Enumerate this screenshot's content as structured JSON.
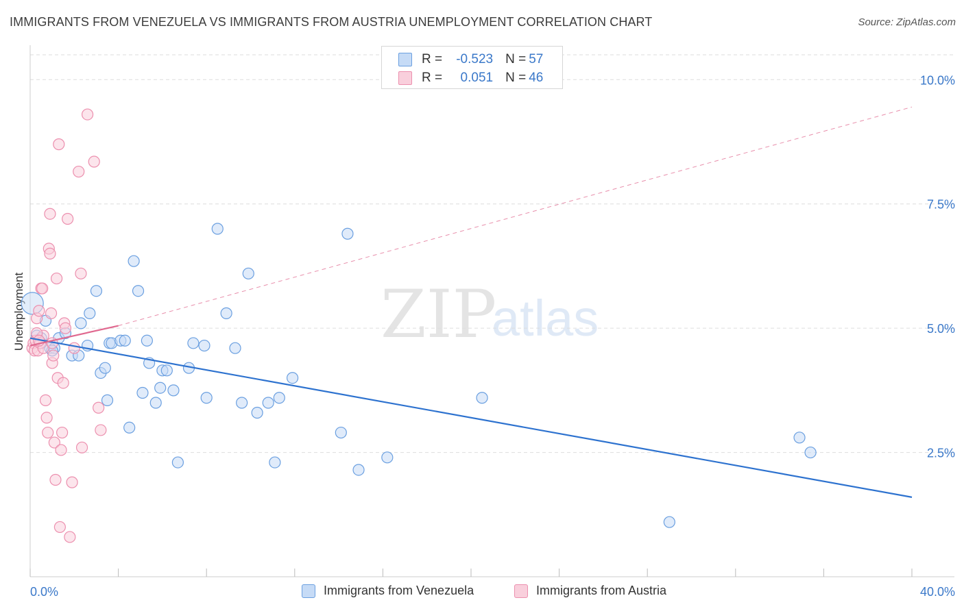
{
  "title": "IMMIGRANTS FROM VENEZUELA VS IMMIGRANTS FROM AUSTRIA UNEMPLOYMENT CORRELATION CHART",
  "source": "Source: ZipAtlas.com",
  "watermark": {
    "zip": "ZIP",
    "atlas": "atlas"
  },
  "colors": {
    "venezuela": "#6a9fe0",
    "venezuela_fill": "#c6dbf6",
    "venezuela_line": "#2d72cf",
    "austria": "#ec8fae",
    "austria_fill": "#f9cfdc",
    "austria_line": "#e0688f",
    "axis_text": "#3a78c9",
    "grid": "#dddddd"
  },
  "stats": [
    {
      "r_label": "R = ",
      "r_value": "-0.523",
      "n_label": "N = ",
      "n_value": "57"
    },
    {
      "r_label": "R = ",
      "r_value": " 0.051",
      "n_label": "N = ",
      "n_value": "46"
    }
  ],
  "chart_data": {
    "type": "scatter",
    "title": "IMMIGRANTS FROM VENEZUELA VS IMMIGRANTS FROM AUSTRIA UNEMPLOYMENT CORRELATION CHART",
    "xlabel": "",
    "ylabel": "Unemployment",
    "xlim": [
      0,
      40
    ],
    "ylim": [
      0,
      10.5
    ],
    "x_tick_labels": [
      "0.0%",
      "40.0%"
    ],
    "y_ticks": [
      2.5,
      5.0,
      7.5,
      10.0
    ],
    "y_tick_labels": [
      "2.5%",
      "5.0%",
      "7.5%",
      "10.0%"
    ],
    "grid": true,
    "legend_position": "bottom",
    "series": [
      {
        "name": "Immigrants from Venezuela",
        "points": [
          [
            0.1,
            5.5
          ],
          [
            0.3,
            4.85
          ],
          [
            0.5,
            4.8
          ],
          [
            0.7,
            5.15
          ],
          [
            0.9,
            4.6
          ],
          [
            1.1,
            4.6
          ],
          [
            1.3,
            4.8
          ],
          [
            1.6,
            4.9
          ],
          [
            1.9,
            4.45
          ],
          [
            2.3,
            5.1
          ],
          [
            2.6,
            4.65
          ],
          [
            2.7,
            5.3
          ],
          [
            3.0,
            5.75
          ],
          [
            3.2,
            4.1
          ],
          [
            3.4,
            4.2
          ],
          [
            3.5,
            3.55
          ],
          [
            3.6,
            4.7
          ],
          [
            3.7,
            4.7
          ],
          [
            4.1,
            4.75
          ],
          [
            4.3,
            4.75
          ],
          [
            4.5,
            3.0
          ],
          [
            4.7,
            6.35
          ],
          [
            4.9,
            5.75
          ],
          [
            5.1,
            3.7
          ],
          [
            5.3,
            4.75
          ],
          [
            5.4,
            4.3
          ],
          [
            5.7,
            3.5
          ],
          [
            5.9,
            3.8
          ],
          [
            6.0,
            4.15
          ],
          [
            6.2,
            4.15
          ],
          [
            6.5,
            3.75
          ],
          [
            6.7,
            2.3
          ],
          [
            7.2,
            4.2
          ],
          [
            7.4,
            4.7
          ],
          [
            7.9,
            4.65
          ],
          [
            8.0,
            3.6
          ],
          [
            8.5,
            7.0
          ],
          [
            8.9,
            5.3
          ],
          [
            9.3,
            4.6
          ],
          [
            9.6,
            3.5
          ],
          [
            9.9,
            6.1
          ],
          [
            10.3,
            3.3
          ],
          [
            10.8,
            3.5
          ],
          [
            11.1,
            2.3
          ],
          [
            11.3,
            3.6
          ],
          [
            11.9,
            4.0
          ],
          [
            14.1,
            2.9
          ],
          [
            14.4,
            6.9
          ],
          [
            14.9,
            2.15
          ],
          [
            16.2,
            2.4
          ],
          [
            20.5,
            3.6
          ],
          [
            29.0,
            1.1
          ],
          [
            34.9,
            2.8
          ],
          [
            35.4,
            2.5
          ],
          [
            0.5,
            4.7
          ],
          [
            2.2,
            4.45
          ],
          [
            1.0,
            4.55
          ]
        ]
      },
      {
        "name": "Immigrants from Austria",
        "points": [
          [
            0.1,
            4.6
          ],
          [
            0.15,
            4.7
          ],
          [
            0.2,
            4.55
          ],
          [
            0.25,
            4.75
          ],
          [
            0.3,
            5.2
          ],
          [
            0.35,
            4.55
          ],
          [
            0.4,
            5.35
          ],
          [
            0.45,
            4.7
          ],
          [
            0.5,
            5.8
          ],
          [
            0.55,
            5.8
          ],
          [
            0.6,
            4.85
          ],
          [
            0.7,
            3.55
          ],
          [
            0.75,
            3.2
          ],
          [
            0.8,
            2.9
          ],
          [
            0.85,
            6.6
          ],
          [
            0.9,
            6.5
          ],
          [
            0.9,
            7.3
          ],
          [
            0.95,
            5.3
          ],
          [
            1.0,
            4.3
          ],
          [
            1.05,
            4.45
          ],
          [
            1.1,
            2.7
          ],
          [
            1.15,
            1.95
          ],
          [
            1.2,
            6.0
          ],
          [
            1.25,
            4.0
          ],
          [
            1.3,
            8.7
          ],
          [
            1.35,
            1.0
          ],
          [
            1.4,
            2.55
          ],
          [
            1.45,
            2.9
          ],
          [
            1.5,
            3.9
          ],
          [
            1.55,
            5.1
          ],
          [
            1.6,
            5.0
          ],
          [
            1.7,
            7.2
          ],
          [
            1.8,
            0.8
          ],
          [
            1.9,
            1.9
          ],
          [
            2.0,
            4.6
          ],
          [
            2.2,
            8.15
          ],
          [
            2.3,
            6.1
          ],
          [
            2.35,
            2.6
          ],
          [
            2.6,
            9.3
          ],
          [
            2.9,
            8.35
          ],
          [
            3.1,
            3.4
          ],
          [
            3.2,
            2.95
          ],
          [
            0.6,
            4.6
          ],
          [
            0.3,
            4.9
          ],
          [
            0.4,
            4.75
          ],
          [
            1.0,
            4.7
          ]
        ]
      }
    ],
    "trend_lines": [
      {
        "series": "Immigrants from Venezuela",
        "x": [
          0,
          40
        ],
        "y": [
          4.8,
          1.6
        ],
        "style": "solid"
      },
      {
        "series": "Immigrants from Austria",
        "x": [
          0,
          4
        ],
        "y": [
          4.65,
          5.05
        ],
        "style": "solid"
      },
      {
        "series": "Immigrants from Austria",
        "x": [
          4,
          40
        ],
        "y": [
          5.05,
          9.45
        ],
        "style": "dashed"
      }
    ]
  },
  "legend": [
    {
      "label": "Immigrants from Venezuela"
    },
    {
      "label": "Immigrants from Austria"
    }
  ]
}
